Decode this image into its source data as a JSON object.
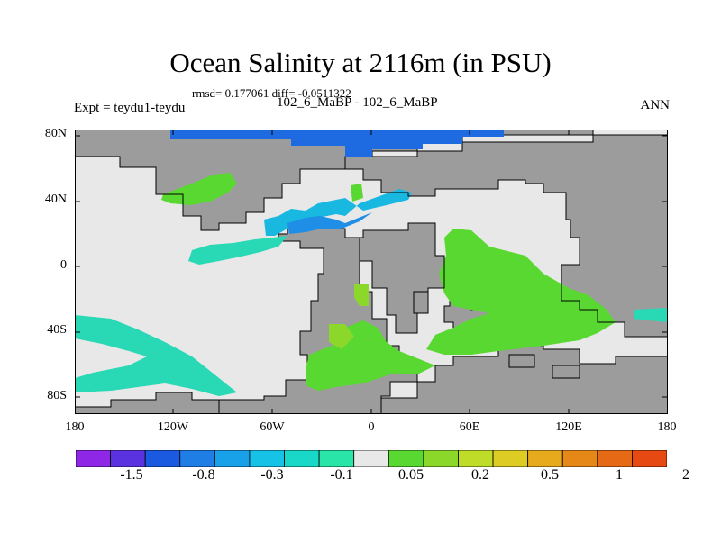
{
  "title": "Ocean Salinity at 2116m (in PSU)",
  "stats": "rmsd= 0.177061 diff= -0.0511322",
  "cases": "102_6_MaBP - 102_6_MaBP",
  "expt": "Expt = teydu1-teydu",
  "season": "ANN",
  "y_ticks": [
    "80N",
    "40N",
    "0",
    "40S",
    "80S"
  ],
  "x_ticks": [
    "180",
    "120W",
    "60W",
    "0",
    "60E",
    "120E",
    "180"
  ],
  "colorbar": {
    "labels": [
      "-1.5",
      "-0.8",
      "-0.3",
      "-0.1",
      "0.05",
      "0.2",
      "0.5",
      "1",
      "2"
    ],
    "colors": [
      "#8f28e6",
      "#5a32e0",
      "#1a5ae0",
      "#1e7ee6",
      "#18a0e8",
      "#16c2e6",
      "#1ad8c8",
      "#29e6a8",
      "#e8e8e8",
      "#5ad832",
      "#8cd82a",
      "#bedc28",
      "#dccc24",
      "#e6aa1c",
      "#e68818",
      "#e66a16",
      "#e64a12"
    ]
  },
  "colors": {
    "land": "#9c9c9c",
    "near_zero": "#e8e8e8",
    "coast": "#000000"
  }
}
